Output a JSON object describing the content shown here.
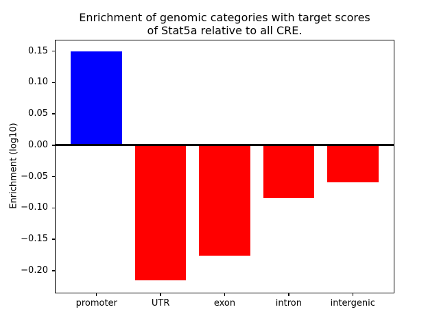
{
  "figure": {
    "background": "#ffffff",
    "text_color": "#000000"
  },
  "chart_data": {
    "type": "bar",
    "title": "Enrichment of genomic categories with target scores\nof Stat5a relative to all CRE.",
    "xlabel": "",
    "ylabel": "Enrichment (log10)",
    "categories": [
      "promoter",
      "UTR",
      "exon",
      "intron",
      "intergenic"
    ],
    "values": [
      0.15,
      -0.215,
      -0.176,
      -0.084,
      -0.059
    ],
    "bar_colors": [
      "#0000ff",
      "#ff0000",
      "#ff0000",
      "#ff0000",
      "#ff0000"
    ],
    "positive_color": "#0000ff",
    "negative_color": "#ff0000",
    "ylim": [
      -0.235,
      0.167
    ],
    "xlim": [
      -0.64,
      4.64
    ],
    "bar_width": 0.8,
    "yticks": [
      {
        "value": 0.15,
        "label": "0.15"
      },
      {
        "value": 0.1,
        "label": "0.10"
      },
      {
        "value": 0.05,
        "label": "0.05"
      },
      {
        "value": 0.0,
        "label": "0.00"
      },
      {
        "value": -0.05,
        "label": "−0.05"
      },
      {
        "value": -0.1,
        "label": "−0.10"
      },
      {
        "value": -0.15,
        "label": "−0.15"
      },
      {
        "value": -0.2,
        "label": "−0.20"
      }
    ],
    "zero_line": {
      "show": true,
      "color": "#000000"
    },
    "grid": false,
    "legend": "none",
    "axis_color": "#000000"
  }
}
